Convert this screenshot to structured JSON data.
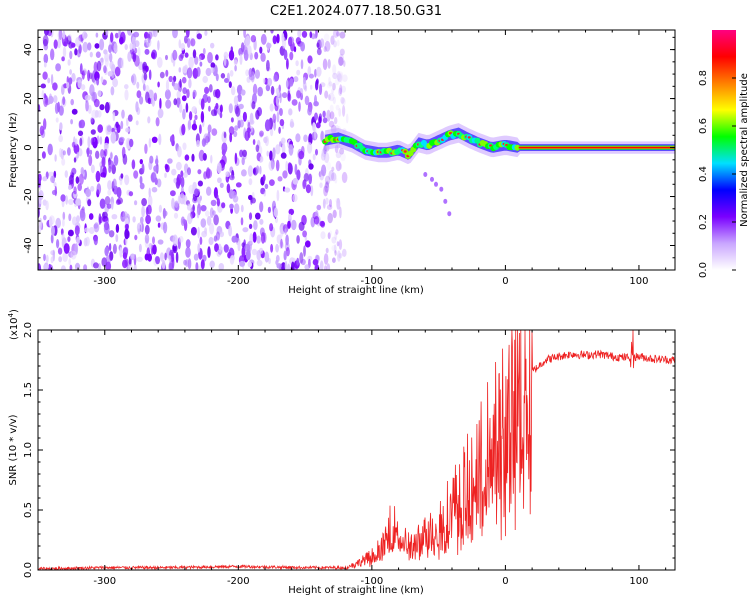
{
  "title": "C2E1.2024.077.18.50.G31",
  "chart_data": [
    {
      "type": "heatmap",
      "xlabel": "Height of straight line (km)",
      "ylabel": "Frequency (Hz)",
      "xlim": [
        -350,
        127
      ],
      "ylim": [
        -50,
        48
      ],
      "xticks": [
        -300,
        -200,
        -100,
        0,
        100
      ],
      "xtick_labels": [
        "-300",
        "-200",
        "-100",
        "0",
        "100"
      ],
      "yticks": [
        -40,
        -20,
        0,
        20,
        40
      ],
      "ytick_labels": [
        "-40",
        "-20",
        "0",
        "20",
        "40"
      ],
      "noise_region_x": [
        -350,
        -120
      ],
      "signal_trace": {
        "x": [
          -135,
          -125,
          -115,
          -105,
          -95,
          -88,
          -80,
          -72,
          -65,
          -58,
          -50,
          -42,
          -35,
          -28,
          -20,
          -10,
          0,
          10,
          20,
          60,
          127
        ],
        "y": [
          3,
          4,
          2,
          -1,
          -2,
          -2,
          -1,
          -3,
          2,
          1,
          3,
          5,
          6,
          4,
          2,
          0,
          1,
          0,
          0,
          0,
          0
        ]
      },
      "faint_branch": {
        "x": [
          -60,
          -55,
          -52,
          -48,
          -45,
          -42
        ],
        "y": [
          -11,
          -13,
          -15,
          -17,
          -22,
          -27
        ]
      },
      "colorbar": {
        "label": "Normalized spectral amplitude",
        "range": [
          0,
          1
        ],
        "ticks": [
          0.0,
          0.2,
          0.4,
          0.6,
          0.8
        ],
        "tick_labels": [
          "0.0",
          "0.2",
          "0.4",
          "0.6",
          "0.8"
        ],
        "colors": [
          "#ffffff",
          "#c9a6ff",
          "#7a00ff",
          "#0000ff",
          "#00e0ff",
          "#00ff00",
          "#ffff00",
          "#ff8000",
          "#ff0000",
          "#ff0080"
        ]
      }
    },
    {
      "type": "line",
      "xlabel": "Height of straight line (km)",
      "ylabel": "SNR (10 * v/v)",
      "scale_label": "(x10",
      "scale_exp": "4",
      "scale_close": ")",
      "xlim": [
        -350,
        127
      ],
      "ylim": [
        0,
        2.0
      ],
      "xticks": [
        -300,
        -200,
        -100,
        0,
        100
      ],
      "xtick_labels": [
        "-300",
        "-200",
        "-100",
        "0",
        "100"
      ],
      "yticks": [
        0.0,
        0.5,
        1.0,
        1.5,
        2.0
      ],
      "ytick_labels": [
        "0.0",
        "0.5",
        "1.0",
        "1.5",
        "2.0"
      ],
      "series": [
        {
          "color": "#ee2222",
          "x": [
            -350,
            -300,
            -250,
            -200,
            -150,
            -120,
            -110,
            -100,
            -90,
            -85,
            -80,
            -75,
            -70,
            -60,
            -50,
            -40,
            -30,
            -20,
            -10,
            0,
            10,
            20,
            30,
            40,
            50,
            60,
            70,
            80,
            90,
            100,
            110,
            127
          ],
          "y": [
            0.01,
            0.02,
            0.02,
            0.03,
            0.02,
            0.02,
            0.06,
            0.12,
            0.22,
            0.4,
            0.3,
            0.25,
            0.2,
            0.3,
            0.4,
            0.55,
            0.7,
            0.9,
            1.1,
            1.3,
            1.5,
            1.65,
            1.75,
            1.78,
            1.8,
            1.79,
            1.8,
            1.78,
            1.77,
            1.78,
            1.76,
            1.75
          ]
        }
      ]
    }
  ]
}
